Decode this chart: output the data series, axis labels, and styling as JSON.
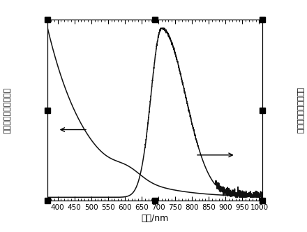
{
  "xlim": [
    370,
    1010
  ],
  "ylim": [
    -0.02,
    1.05
  ],
  "xlabel": "波长/nm",
  "ylabel_left": "归一化的紫外吸收强度",
  "ylabel_right": "归一化的荚光发射强度",
  "xticks": [
    400,
    450,
    500,
    550,
    600,
    650,
    700,
    750,
    800,
    850,
    900,
    950,
    1000
  ],
  "bg_color": "#ffffff",
  "plot_bg_color": "#ffffff",
  "line_color": "#111111",
  "border_color": "#000000"
}
